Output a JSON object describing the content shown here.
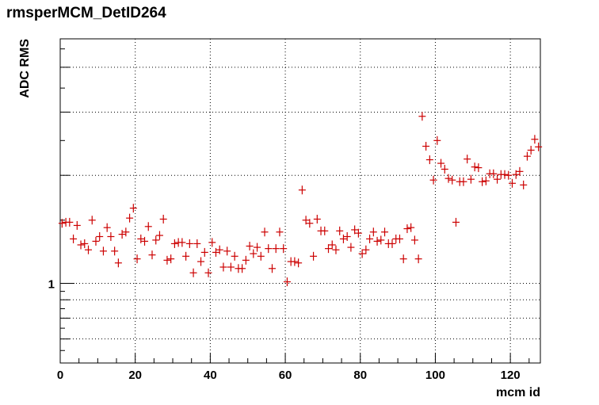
{
  "chart_data": {
    "type": "scatter",
    "title": "rmsperMCM_DetID264",
    "xlabel": "mcm id",
    "ylabel": "ADC RMS",
    "xlim": [
      0,
      128
    ],
    "ylim": [
      0.6,
      4.8
    ],
    "yscale": "log",
    "grid": true,
    "legend": "none",
    "marker": "plus",
    "x_ticks": [
      "0",
      "20",
      "40",
      "60",
      "80",
      "100",
      "120"
    ],
    "y_ticks": [
      "1"
    ],
    "series": [
      {
        "color": "#cc0000",
        "x": [
          0,
          1,
          2,
          3,
          4,
          5,
          6,
          7,
          8,
          9,
          10,
          11,
          12,
          13,
          14,
          15,
          16,
          17,
          18,
          19,
          20,
          21,
          22,
          23,
          24,
          25,
          26,
          27,
          28,
          29,
          30,
          31,
          32,
          33,
          34,
          35,
          36,
          37,
          38,
          39,
          40,
          41,
          42,
          43,
          44,
          45,
          46,
          47,
          48,
          49,
          50,
          51,
          52,
          53,
          54,
          55,
          56,
          57,
          58,
          59,
          60,
          61,
          62,
          63,
          64,
          65,
          66,
          67,
          68,
          69,
          70,
          71,
          72,
          73,
          74,
          75,
          76,
          77,
          78,
          79,
          80,
          81,
          82,
          83,
          84,
          85,
          86,
          87,
          88,
          89,
          90,
          91,
          92,
          93,
          94,
          95,
          96,
          97,
          98,
          99,
          100,
          101,
          102,
          103,
          104,
          105,
          106,
          107,
          108,
          109,
          110,
          111,
          112,
          113,
          114,
          115,
          116,
          117,
          118,
          119,
          120,
          121,
          122,
          123,
          124,
          125,
          126,
          127
        ],
        "y": [
          1.47,
          1.48,
          1.48,
          1.33,
          1.45,
          1.28,
          1.29,
          1.24,
          1.5,
          1.31,
          1.35,
          1.23,
          1.43,
          1.35,
          1.23,
          1.14,
          1.37,
          1.39,
          1.52,
          1.62,
          1.17,
          1.33,
          1.31,
          1.44,
          1.2,
          1.32,
          1.36,
          1.51,
          1.16,
          1.17,
          1.29,
          1.3,
          1.3,
          1.19,
          1.29,
          1.07,
          1.29,
          1.15,
          1.22,
          1.07,
          1.3,
          1.22,
          1.24,
          1.11,
          1.23,
          1.11,
          1.19,
          1.1,
          1.1,
          1.16,
          1.27,
          1.21,
          1.26,
          1.19,
          1.39,
          1.25,
          1.1,
          1.25,
          1.39,
          1.25,
          1.01,
          1.15,
          1.15,
          1.14,
          1.82,
          1.5,
          1.47,
          1.19,
          1.51,
          1.4,
          1.4,
          1.25,
          1.28,
          1.24,
          1.4,
          1.33,
          1.35,
          1.26,
          1.41,
          1.38,
          1.21,
          1.24,
          1.33,
          1.39,
          1.31,
          1.32,
          1.39,
          1.29,
          1.29,
          1.33,
          1.33,
          1.17,
          1.42,
          1.43,
          1.32,
          1.17,
          2.92,
          2.41,
          2.21,
          1.94,
          2.5,
          2.16,
          2.08,
          1.96,
          1.94,
          1.48,
          1.92,
          1.92,
          2.22,
          1.95,
          2.11,
          2.1,
          1.92,
          1.93,
          2.02,
          2.02,
          1.95,
          2.01,
          2.01,
          2.0,
          1.9,
          2.01,
          2.05,
          1.88,
          2.26,
          2.35,
          2.52,
          2.4
        ]
      }
    ]
  }
}
